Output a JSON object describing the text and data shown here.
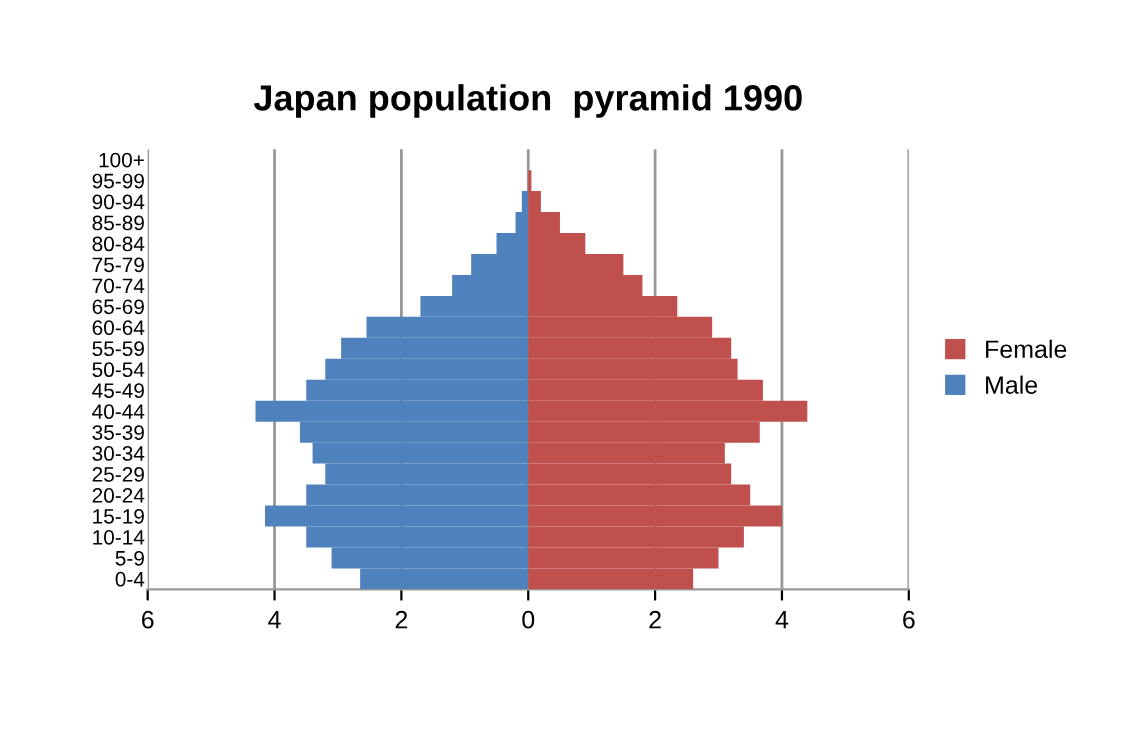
{
  "chart_data": {
    "type": "bar",
    "orientation": "horizontal",
    "title": "Japan population  pyramid 1990",
    "categories": [
      "100+",
      "95-99",
      "90-94",
      "85-89",
      "80-84",
      "75-79",
      "70-74",
      "65-69",
      "60-64",
      "55-59",
      "50-54",
      "45-49",
      "40-44",
      "35-39",
      "30-34",
      "25-29",
      "20-24",
      "15-19",
      "10-14",
      "5-9",
      "0-4"
    ],
    "series": [
      {
        "name": "Male",
        "color": "#4f81bd",
        "values": [
          0,
          0,
          -0.1,
          -0.2,
          -0.5,
          -0.9,
          -1.2,
          -1.7,
          -2.55,
          -2.95,
          -3.2,
          -3.5,
          -4.3,
          -3.6,
          -3.4,
          -3.2,
          -3.5,
          -4.15,
          -3.5,
          -3.1,
          -2.65
        ]
      },
      {
        "name": "Female",
        "color": "#c0504d",
        "values": [
          0,
          0.05,
          0.2,
          0.5,
          0.9,
          1.5,
          1.8,
          2.35,
          2.9,
          3.2,
          3.3,
          3.7,
          4.4,
          3.65,
          3.1,
          3.2,
          3.5,
          4.0,
          3.4,
          3.0,
          2.6
        ]
      }
    ],
    "xlim": [
      -6,
      6
    ],
    "xticks": [
      {
        "value": -6,
        "label": "6"
      },
      {
        "value": -4,
        "label": "4"
      },
      {
        "value": -2,
        "label": "2"
      },
      0,
      2,
      4,
      6
    ],
    "grid": "x",
    "legend": "right",
    "stacked": true
  }
}
